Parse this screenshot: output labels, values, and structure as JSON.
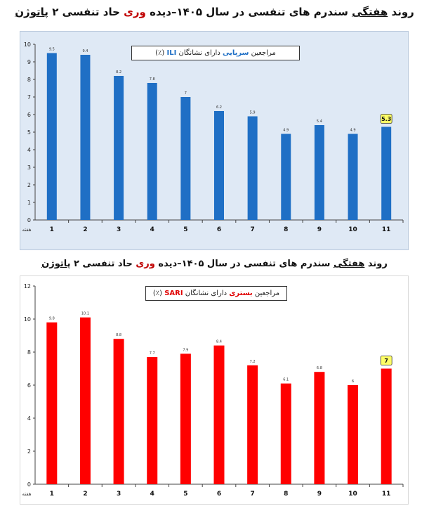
{
  "titles": {
    "top": {
      "p1": "روند ",
      "u1": "هفتگی",
      "p2": " سندرم های تنفسی در سال ",
      "year": "۱۴۰۵",
      "p3": "–دیده ",
      "hl": "وری",
      "p4": " حاد تنفسی ۲ ",
      "u2": "پاتوژن"
    },
    "bottom": {
      "p1": "روند ",
      "u1": "هفتگی",
      "p2": " سندرم های تنفسی در سال ",
      "year": "۱۴۰۵",
      "p3": "–دیده ",
      "hl": "وری",
      "p4": " حاد تنفسی ۲ ",
      "u2": "پاتوژن"
    }
  },
  "legends": {
    "ili": {
      "pre": "مراجعین ",
      "hl": "سرپایی",
      "mid": " دارای نشانگان ",
      "lat": "ILI",
      "post": " (٪)"
    },
    "sari": {
      "pre": "مراجعین ",
      "hl": "بستری",
      "mid": " دارای نشانگان ",
      "lat": "SARI",
      "post": " (٪)"
    }
  },
  "chart_data": [
    {
      "type": "bar",
      "title": "مراجعین سرپایی دارای نشانگان ILI (٪)",
      "categories": [
        "1",
        "2",
        "3",
        "4",
        "5",
        "6",
        "7",
        "8",
        "9",
        "10",
        "11"
      ],
      "values": [
        9.5,
        9.4,
        8.2,
        7.8,
        7,
        6.2,
        5.9,
        4.9,
        5.4,
        4.9,
        5.3
      ],
      "value_labels": [
        "9.5",
        "9.4",
        "8.2",
        "7.8",
        "7",
        "6.2",
        "5.9",
        "4.9",
        "5.4",
        "4.9",
        "5.3"
      ],
      "y_ticks": [
        "0",
        "1",
        "2",
        "3",
        "4",
        "5",
        "6",
        "7",
        "8",
        "9",
        "10"
      ],
      "ylim": [
        0,
        10
      ],
      "xlabel": "هفته",
      "highlight_last": true,
      "bar_color": "#1f6fc5",
      "highlight_color": "#ffff66"
    },
    {
      "type": "bar",
      "title": "مراجعین بستری دارای نشانگان SARI (٪)",
      "categories": [
        "1",
        "2",
        "3",
        "4",
        "5",
        "6",
        "7",
        "8",
        "9",
        "10",
        "11"
      ],
      "values": [
        9.8,
        10.1,
        8.8,
        7.7,
        7.9,
        8.4,
        7.2,
        6.1,
        6.8,
        6,
        7
      ],
      "value_labels": [
        "9.8",
        "10.1",
        "8.8",
        "7.7",
        "7.9",
        "8.4",
        "7.2",
        "6.1",
        "6.8",
        "6",
        "7"
      ],
      "y_ticks": [
        "0",
        "2",
        "4",
        "6",
        "8",
        "10",
        "12"
      ],
      "ylim": [
        0,
        12
      ],
      "xlabel": "هفته",
      "highlight_last": true,
      "bar_color": "#ff0000",
      "highlight_color": "#ffff66"
    }
  ]
}
